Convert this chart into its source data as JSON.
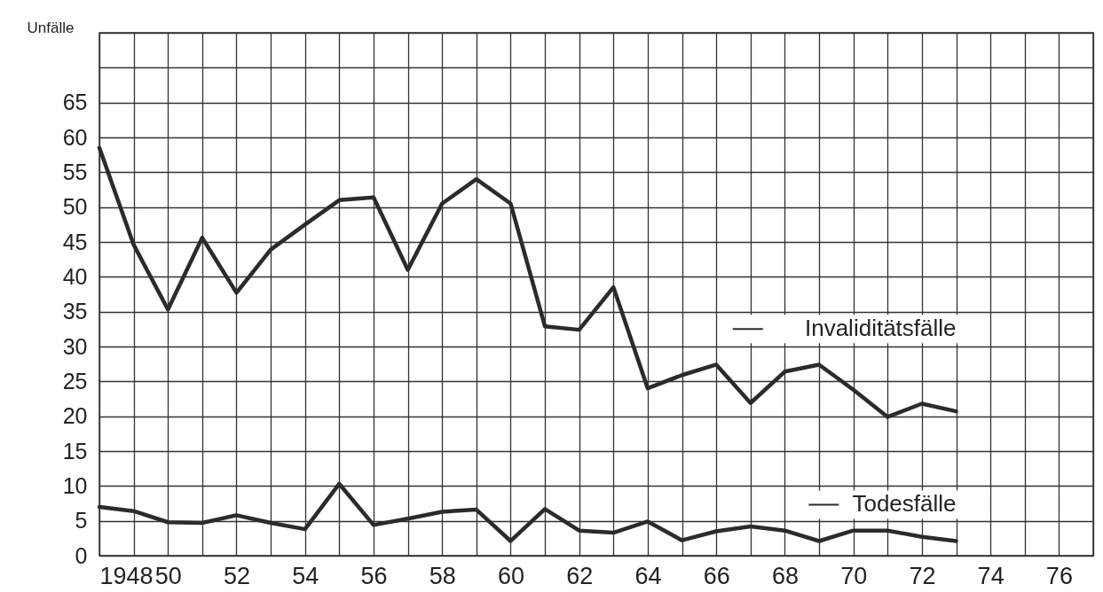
{
  "chart_data": {
    "type": "line",
    "ylabel": "Unfälle",
    "x": [
      1948,
      1949,
      1950,
      1951,
      1952,
      1953,
      1954,
      1955,
      1956,
      1957,
      1958,
      1959,
      1960,
      1961,
      1962,
      1963,
      1964,
      1965,
      1966,
      1967,
      1968,
      1969,
      1970,
      1971,
      1972,
      1973
    ],
    "series": [
      {
        "name": "Invaliditätsfälle",
        "color": "#2b2b2b",
        "values": [
          58.5,
          44.6,
          35.3,
          45.6,
          37.7,
          43.9,
          47.5,
          51.0,
          51.4,
          41.0,
          50.5,
          54.0,
          50.5,
          32.9,
          32.4,
          38.5,
          24.0,
          25.9,
          27.4,
          21.9,
          26.4,
          27.4,
          23.8,
          19.9,
          21.8,
          20.7
        ]
      },
      {
        "name": "Todesfälle",
        "color": "#2b2b2b",
        "values": [
          7.0,
          6.4,
          4.8,
          4.7,
          5.8,
          4.7,
          3.8,
          10.3,
          4.4,
          5.3,
          6.3,
          6.6,
          2.1,
          6.7,
          3.6,
          3.3,
          4.9,
          2.2,
          3.5,
          4.2,
          3.6,
          2.1,
          3.6,
          3.6,
          2.7,
          2.1
        ]
      }
    ],
    "xlim": [
      1948,
      1977
    ],
    "xticks": [
      {
        "value": 1948,
        "label": "1948"
      },
      {
        "value": 1949,
        "label": null
      },
      {
        "value": 1950,
        "label": "50"
      },
      {
        "value": 1951,
        "label": null
      },
      {
        "value": 1952,
        "label": "52"
      },
      {
        "value": 1953,
        "label": null
      },
      {
        "value": 1954,
        "label": "54"
      },
      {
        "value": 1955,
        "label": null
      },
      {
        "value": 1956,
        "label": "56"
      },
      {
        "value": 1957,
        "label": null
      },
      {
        "value": 1958,
        "label": "58"
      },
      {
        "value": 1959,
        "label": null
      },
      {
        "value": 1960,
        "label": "60"
      },
      {
        "value": 1961,
        "label": null
      },
      {
        "value": 1962,
        "label": "62"
      },
      {
        "value": 1963,
        "label": null
      },
      {
        "value": 1964,
        "label": "64"
      },
      {
        "value": 1965,
        "label": null
      },
      {
        "value": 1966,
        "label": "66"
      },
      {
        "value": 1967,
        "label": null
      },
      {
        "value": 1968,
        "label": "68"
      },
      {
        "value": 1969,
        "label": null
      },
      {
        "value": 1970,
        "label": "70"
      },
      {
        "value": 1971,
        "label": null
      },
      {
        "value": 1972,
        "label": "72"
      },
      {
        "value": 1973,
        "label": null
      },
      {
        "value": 1974,
        "label": "74"
      },
      {
        "value": 1975,
        "label": null
      },
      {
        "value": 1976,
        "label": "76"
      },
      {
        "value": 1977,
        "label": null
      }
    ],
    "ylim": [
      0,
      75
    ],
    "yticks": [
      0,
      5,
      10,
      15,
      20,
      25,
      30,
      35,
      40,
      45,
      50,
      55,
      60,
      65,
      {
        "value": 70,
        "label": null
      },
      {
        "value": 75,
        "label": null
      }
    ],
    "grid": true,
    "legend": "right",
    "marker": "none",
    "line_style": "solid"
  }
}
